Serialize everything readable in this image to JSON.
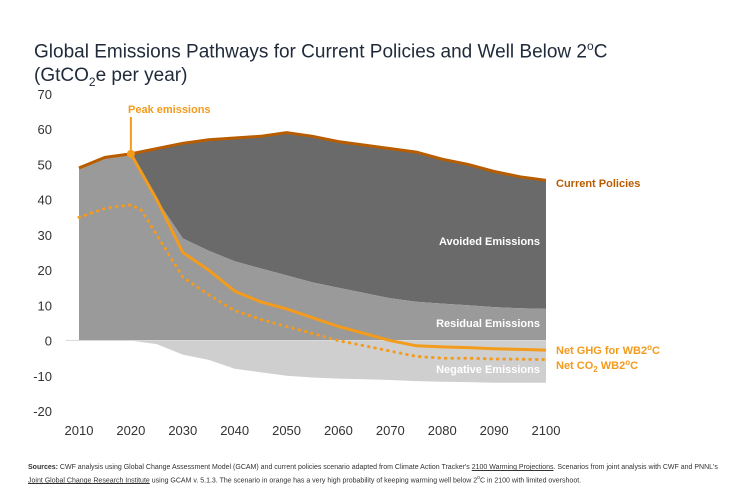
{
  "title": {
    "part1": "Global Emissions Pathways for Current Policies and Well Below 2",
    "deg1": "o",
    "part2": "C",
    "line2_pre": "(GtCO",
    "line2_sub": "2",
    "line2_post": "e per year)"
  },
  "colors": {
    "current_policies": "#b85c00",
    "orange": "#f39b1c",
    "avoided_fill": "#6a6a6a",
    "residual_fill": "#9a9a9a",
    "negative_fill": "#cfcfcf",
    "axis_text": "#333333"
  },
  "chart_data": {
    "type": "area",
    "title": "Global Emissions Pathways for Current Policies and Well Below 2°C (GtCO2e per year)",
    "xlabel": "",
    "ylabel": "",
    "xlim": [
      2010,
      2100
    ],
    "ylim": [
      -20,
      70
    ],
    "x_ticks": [
      "2010",
      "2020",
      "2030",
      "2040",
      "2050",
      "2060",
      "2070",
      "2080",
      "2090",
      "2100"
    ],
    "y_ticks": [
      "70",
      "60",
      "50",
      "40",
      "30",
      "20",
      "10",
      "0",
      "-10",
      "-20"
    ],
    "grid": false,
    "series": [
      {
        "name": "Current Policies",
        "kind": "line",
        "x": [
          2010,
          2015,
          2020,
          2025,
          2030,
          2035,
          2040,
          2045,
          2050,
          2055,
          2060,
          2065,
          2070,
          2075,
          2080,
          2085,
          2090,
          2095,
          2100
        ],
        "values": [
          49,
          52,
          53,
          54.5,
          56,
          57,
          57.5,
          58,
          59,
          58,
          56.5,
          55.5,
          54.5,
          53.5,
          51.5,
          50,
          48,
          46.5,
          45.5
        ]
      },
      {
        "name": "Net GHG for WB2°C",
        "kind": "line",
        "x": [
          2010,
          2015,
          2020,
          2025,
          2030,
          2035,
          2040,
          2045,
          2050,
          2055,
          2060,
          2065,
          2070,
          2075,
          2080,
          2085,
          2090,
          2095,
          2100
        ],
        "values": [
          49,
          52,
          53,
          40,
          25,
          20,
          14,
          11,
          9,
          6.5,
          4,
          2,
          0,
          -1.5,
          -1.8,
          -2,
          -2.3,
          -2.5,
          -2.7
        ]
      },
      {
        "name": "Net CO2 WB2°C",
        "kind": "line",
        "style": "dotted",
        "x": [
          2010,
          2015,
          2017,
          2020,
          2022,
          2025,
          2030,
          2035,
          2040,
          2045,
          2050,
          2055,
          2060,
          2065,
          2070,
          2075,
          2080,
          2085,
          2090,
          2095,
          2100
        ],
        "values": [
          35,
          37.5,
          38,
          38.5,
          37,
          30,
          18,
          13,
          8.5,
          6,
          4,
          2,
          0,
          -1.5,
          -3,
          -4.5,
          -5,
          -5,
          -5.2,
          -5.3,
          -5.4
        ]
      },
      {
        "name": "Residual Emissions top",
        "kind": "area_top",
        "x": [
          2020,
          2025,
          2030,
          2035,
          2040,
          2045,
          2050,
          2055,
          2060,
          2065,
          2070,
          2075,
          2080,
          2085,
          2090,
          2095,
          2100
        ],
        "values": [
          53,
          40,
          29,
          25.5,
          22.5,
          20.5,
          18.5,
          16.5,
          15,
          13.5,
          12,
          11,
          10.5,
          10,
          9.5,
          9.2,
          9
        ]
      },
      {
        "name": "Negative Emissions bottom",
        "kind": "area_bottom",
        "x": [
          2020,
          2025,
          2030,
          2035,
          2040,
          2045,
          2050,
          2055,
          2060,
          2065,
          2070,
          2075,
          2080,
          2085,
          2090,
          2095,
          2100
        ],
        "values": [
          0,
          -1,
          -4,
          -5.5,
          -8,
          -9,
          -10,
          -10.5,
          -10.8,
          -11,
          -11.2,
          -11.5,
          -11.7,
          -11.8,
          -12,
          -12,
          -12
        ]
      }
    ],
    "area_labels": {
      "avoided": "Avoided Emissions",
      "residual": "Residual Emissions",
      "negative": "Negative Emissions"
    },
    "annotations": {
      "peak": "Peak emissions",
      "current_policies": "Current Policies",
      "net_ghg_pre": "Net GHG for WB2",
      "net_ghg_deg": "o",
      "net_ghg_post": "C",
      "net_co2_pre": "Net CO",
      "net_co2_sub": "2",
      "net_co2_mid": " WB2",
      "net_co2_deg": "o",
      "net_co2_post": "C"
    }
  },
  "sources": {
    "label": "Sources:",
    "text1": " CWF analysis using Global Change Assessment Model (GCAM) and current policies scenario adapted from Climate Action Tracker's ",
    "link1": "2100 Warming Projections",
    "text2": ". Scenarios from joint analysis with CWF and PNNL's ",
    "link2": "Joint Global Change Research Institute",
    "text3": "  using GCAM v. 5.1.3. The scenario in orange has a very high probability of keeping warming well below 2",
    "deg": "o",
    "text4": "C in 2100 with limited overshoot."
  }
}
